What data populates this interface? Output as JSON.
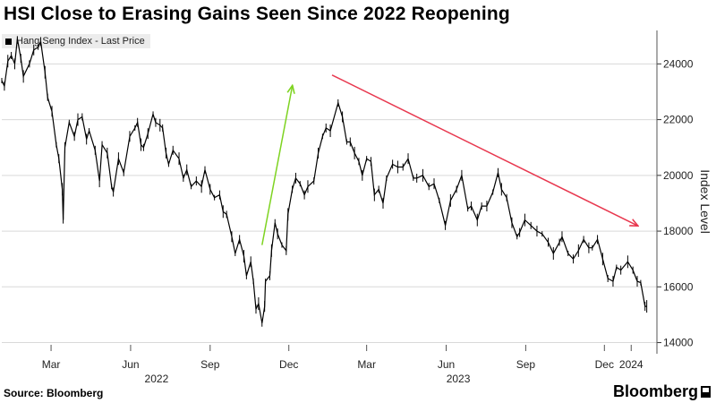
{
  "header": {
    "title": "HSI Close to Erasing Gains Seen Since 2022 Reopening"
  },
  "legend": {
    "label": "Hang Seng Index - Last Price"
  },
  "footer": {
    "source": "Source: Bloomberg",
    "brand": "Bloomberg"
  },
  "colors": {
    "line": "#000000",
    "grid": "#d9d9d9",
    "up_arrow": "#7ed321",
    "down_arrow": "#e8384f"
  },
  "chart_data": {
    "type": "line",
    "title": "HSI Close to Erasing Gains Seen Since 2022 Reopening",
    "ylabel": "Index Level",
    "xlabel": "",
    "ylim": [
      13600,
      25200
    ],
    "yticks": [
      14000,
      16000,
      18000,
      20000,
      22000,
      24000
    ],
    "x_range": [
      "2022-01-03",
      "2024-01-12"
    ],
    "x_ticks": [
      {
        "date": "2022-03-01",
        "label": "Mar"
      },
      {
        "date": "2022-06-01",
        "label": "Jun"
      },
      {
        "date": "2022-09-01",
        "label": "Sep"
      },
      {
        "date": "2022-12-01",
        "label": "Dec"
      },
      {
        "date": "2023-03-01",
        "label": "Mar"
      },
      {
        "date": "2023-06-01",
        "label": "Jun"
      },
      {
        "date": "2023-09-01",
        "label": "Sep"
      },
      {
        "date": "2023-12-01",
        "label": "Dec"
      },
      {
        "date": "2024-01-01",
        "label": "2024"
      }
    ],
    "year_labels": [
      {
        "date": "2022-07-01",
        "label": "2022"
      },
      {
        "date": "2023-06-15",
        "label": "2023"
      }
    ],
    "series": [
      {
        "name": "Hang Seng Index - Last Price",
        "points": [
          [
            "2022-01-03",
            23400
          ],
          [
            "2022-01-06",
            23200
          ],
          [
            "2022-01-10",
            24100
          ],
          [
            "2022-01-14",
            24300
          ],
          [
            "2022-01-18",
            24000
          ],
          [
            "2022-01-21",
            24900
          ],
          [
            "2022-01-25",
            24200
          ],
          [
            "2022-01-28",
            23550
          ],
          [
            "2022-02-04",
            24000
          ],
          [
            "2022-02-09",
            24500
          ],
          [
            "2022-02-14",
            24600
          ],
          [
            "2022-02-17",
            24800
          ],
          [
            "2022-02-22",
            23700
          ],
          [
            "2022-02-25",
            22800
          ],
          [
            "2022-03-02",
            22300
          ],
          [
            "2022-03-07",
            21100
          ],
          [
            "2022-03-10",
            20600
          ],
          [
            "2022-03-14",
            19500
          ],
          [
            "2022-03-15",
            18400
          ],
          [
            "2022-03-17",
            21000
          ],
          [
            "2022-03-22",
            21900
          ],
          [
            "2022-03-28",
            21400
          ],
          [
            "2022-04-01",
            22000
          ],
          [
            "2022-04-06",
            22100
          ],
          [
            "2022-04-11",
            21300
          ],
          [
            "2022-04-14",
            21600
          ],
          [
            "2022-04-21",
            20900
          ],
          [
            "2022-04-26",
            19800
          ],
          [
            "2022-04-29",
            21100
          ],
          [
            "2022-05-05",
            20800
          ],
          [
            "2022-05-10",
            19600
          ],
          [
            "2022-05-12",
            19400
          ],
          [
            "2022-05-18",
            20600
          ],
          [
            "2022-05-24",
            20100
          ],
          [
            "2022-05-31",
            21400
          ],
          [
            "2022-06-06",
            21700
          ],
          [
            "2022-06-09",
            21900
          ],
          [
            "2022-06-13",
            21100
          ],
          [
            "2022-06-16",
            21000
          ],
          [
            "2022-06-21",
            21500
          ],
          [
            "2022-06-27",
            22200
          ],
          [
            "2022-06-30",
            21900
          ],
          [
            "2022-07-05",
            21800
          ],
          [
            "2022-07-08",
            21700
          ],
          [
            "2022-07-12",
            20800
          ],
          [
            "2022-07-15",
            20400
          ],
          [
            "2022-07-20",
            20900
          ],
          [
            "2022-07-27",
            20600
          ],
          [
            "2022-08-01",
            19900
          ],
          [
            "2022-08-05",
            20200
          ],
          [
            "2022-08-10",
            19600
          ],
          [
            "2022-08-16",
            19800
          ],
          [
            "2022-08-22",
            19600
          ],
          [
            "2022-08-26",
            20200
          ],
          [
            "2022-09-01",
            19500
          ],
          [
            "2022-09-06",
            19200
          ],
          [
            "2022-09-12",
            19300
          ],
          [
            "2022-09-16",
            18700
          ],
          [
            "2022-09-20",
            18600
          ],
          [
            "2022-09-26",
            17800
          ],
          [
            "2022-09-30",
            17200
          ],
          [
            "2022-10-05",
            17700
          ],
          [
            "2022-10-10",
            17100
          ],
          [
            "2022-10-13",
            16400
          ],
          [
            "2022-10-18",
            16900
          ],
          [
            "2022-10-21",
            16200
          ],
          [
            "2022-10-24",
            15200
          ],
          [
            "2022-10-27",
            15400
          ],
          [
            "2022-10-31",
            14700
          ],
          [
            "2022-11-03",
            15300
          ],
          [
            "2022-11-04",
            16200
          ],
          [
            "2022-11-09",
            16400
          ],
          [
            "2022-11-11",
            17300
          ],
          [
            "2022-11-15",
            18300
          ],
          [
            "2022-11-18",
            17900
          ],
          [
            "2022-11-23",
            17500
          ],
          [
            "2022-11-28",
            17300
          ],
          [
            "2022-11-30",
            18600
          ],
          [
            "2022-12-05",
            19500
          ],
          [
            "2022-12-09",
            19900
          ],
          [
            "2022-12-14",
            19700
          ],
          [
            "2022-12-19",
            19300
          ],
          [
            "2022-12-23",
            19600
          ],
          [
            "2022-12-30",
            19800
          ],
          [
            "2023-01-04",
            20800
          ],
          [
            "2023-01-09",
            21400
          ],
          [
            "2023-01-13",
            21700
          ],
          [
            "2023-01-18",
            21600
          ],
          [
            "2023-01-27",
            22600
          ],
          [
            "2023-02-01",
            22100
          ],
          [
            "2023-02-06",
            21200
          ],
          [
            "2023-02-10",
            21200
          ],
          [
            "2023-02-15",
            20800
          ],
          [
            "2023-02-20",
            20500
          ],
          [
            "2023-02-24",
            20000
          ],
          [
            "2023-03-01",
            20600
          ],
          [
            "2023-03-06",
            20500
          ],
          [
            "2023-03-10",
            19300
          ],
          [
            "2023-03-15",
            19500
          ],
          [
            "2023-03-20",
            19000
          ],
          [
            "2023-03-24",
            19900
          ],
          [
            "2023-03-31",
            20400
          ],
          [
            "2023-04-06",
            20300
          ],
          [
            "2023-04-12",
            20300
          ],
          [
            "2023-04-18",
            20600
          ],
          [
            "2023-04-24",
            19900
          ],
          [
            "2023-04-28",
            19900
          ],
          [
            "2023-05-05",
            20000
          ],
          [
            "2023-05-12",
            19600
          ],
          [
            "2023-05-18",
            19700
          ],
          [
            "2023-05-24",
            19100
          ],
          [
            "2023-05-31",
            18200
          ],
          [
            "2023-06-06",
            19100
          ],
          [
            "2023-06-13",
            19500
          ],
          [
            "2023-06-19",
            20000
          ],
          [
            "2023-06-26",
            18800
          ],
          [
            "2023-06-30",
            18900
          ],
          [
            "2023-07-07",
            18400
          ],
          [
            "2023-07-12",
            18900
          ],
          [
            "2023-07-18",
            18900
          ],
          [
            "2023-07-25",
            19400
          ],
          [
            "2023-07-31",
            20100
          ],
          [
            "2023-08-04",
            19500
          ],
          [
            "2023-08-10",
            19200
          ],
          [
            "2023-08-16",
            18300
          ],
          [
            "2023-08-22",
            17800
          ],
          [
            "2023-08-25",
            17950
          ],
          [
            "2023-08-31",
            18400
          ],
          [
            "2023-09-07",
            18200
          ],
          [
            "2023-09-14",
            18000
          ],
          [
            "2023-09-20",
            17900
          ],
          [
            "2023-09-27",
            17600
          ],
          [
            "2023-10-03",
            17200
          ],
          [
            "2023-10-10",
            17600
          ],
          [
            "2023-10-13",
            17800
          ],
          [
            "2023-10-20",
            17200
          ],
          [
            "2023-10-26",
            17000
          ],
          [
            "2023-11-01",
            17300
          ],
          [
            "2023-11-07",
            17700
          ],
          [
            "2023-11-13",
            17400
          ],
          [
            "2023-11-17",
            17400
          ],
          [
            "2023-11-23",
            17700
          ],
          [
            "2023-11-29",
            17000
          ],
          [
            "2023-12-05",
            16300
          ],
          [
            "2023-12-11",
            16200
          ],
          [
            "2023-12-15",
            16700
          ],
          [
            "2023-12-20",
            16600
          ],
          [
            "2023-12-28",
            16900
          ],
          [
            "2024-01-03",
            16600
          ],
          [
            "2024-01-08",
            16200
          ],
          [
            "2024-01-12",
            16150
          ],
          [
            "2024-01-17",
            15300
          ],
          [
            "2024-01-19",
            15300
          ]
        ]
      }
    ],
    "annotations": [
      {
        "type": "arrow",
        "color": "green",
        "from": {
          "date": "2022-10-31",
          "value": 17500
        },
        "to": {
          "date": "2022-12-05",
          "value": 23200
        }
      },
      {
        "type": "arrow",
        "color": "red",
        "from": {
          "date": "2023-01-20",
          "value": 23600
        },
        "to": {
          "date": "2024-01-08",
          "value": 18200
        }
      }
    ]
  }
}
